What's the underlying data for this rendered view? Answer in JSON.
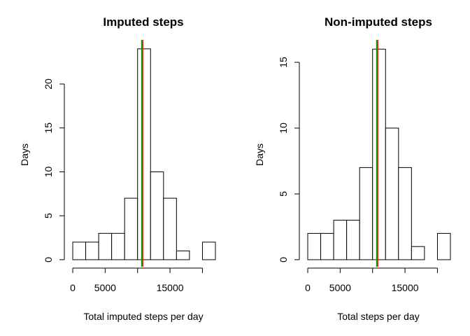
{
  "chart_data": [
    {
      "type": "bar",
      "title": "Imputed steps",
      "xlabel": "Total imputed steps per day",
      "ylabel": "Days",
      "bin_width": 2000,
      "bin_edges": [
        0,
        2000,
        4000,
        6000,
        8000,
        10000,
        12000,
        14000,
        16000,
        18000,
        20000,
        22000
      ],
      "values": [
        2,
        2,
        3,
        3,
        7,
        24,
        10,
        7,
        1,
        0,
        2
      ],
      "xlim": [
        0,
        22000
      ],
      "ylim": [
        0,
        24
      ],
      "xticks": [
        0,
        5000,
        10000,
        15000,
        20000
      ],
      "xtick_labels": [
        "0",
        "5000",
        "",
        "15000",
        ""
      ],
      "yticks": [
        0,
        5,
        10,
        15,
        20
      ],
      "ytick_labels": [
        "0",
        "5",
        "10",
        "15",
        "20"
      ],
      "mean_line": {
        "value": 10766,
        "color": "#ff0000"
      },
      "median_line": {
        "value": 10766,
        "color": "#00a000"
      }
    },
    {
      "type": "bar",
      "title": "Non-imputed steps",
      "xlabel": "Total steps per day",
      "ylabel": "Days",
      "bin_width": 2000,
      "bin_edges": [
        0,
        2000,
        4000,
        6000,
        8000,
        10000,
        12000,
        14000,
        16000,
        18000,
        20000,
        22000
      ],
      "values": [
        2,
        2,
        3,
        3,
        7,
        16,
        10,
        7,
        1,
        0,
        2
      ],
      "xlim": [
        0,
        22000
      ],
      "ylim": [
        0,
        16
      ],
      "xticks": [
        0,
        5000,
        10000,
        15000,
        20000
      ],
      "xtick_labels": [
        "0",
        "5000",
        "",
        "15000",
        ""
      ],
      "yticks": [
        0,
        5,
        10,
        15
      ],
      "ytick_labels": [
        "0",
        "5",
        "10",
        "15"
      ],
      "mean_line": {
        "value": 10766,
        "color": "#ff0000"
      },
      "median_line": {
        "value": 10765,
        "color": "#00a000"
      }
    }
  ]
}
